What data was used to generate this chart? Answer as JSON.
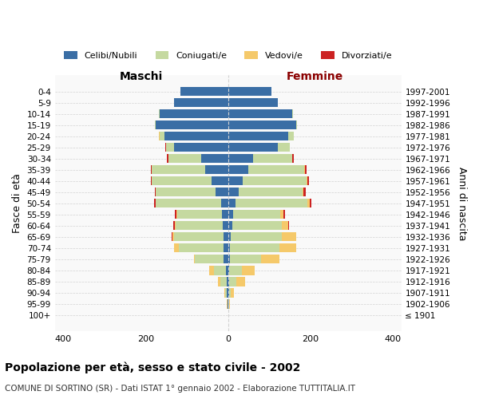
{
  "age_groups": [
    "100+",
    "95-99",
    "90-94",
    "85-89",
    "80-84",
    "75-79",
    "70-74",
    "65-69",
    "60-64",
    "55-59",
    "50-54",
    "45-49",
    "40-44",
    "35-39",
    "30-34",
    "25-29",
    "20-24",
    "15-19",
    "10-14",
    "5-9",
    "0-4"
  ],
  "birth_years": [
    "≤ 1901",
    "1902-1906",
    "1907-1911",
    "1912-1916",
    "1917-1921",
    "1922-1926",
    "1927-1931",
    "1932-1936",
    "1937-1941",
    "1942-1946",
    "1947-1951",
    "1952-1956",
    "1957-1961",
    "1962-1966",
    "1967-1971",
    "1972-1976",
    "1977-1981",
    "1982-1986",
    "1987-1991",
    "1992-1996",
    "1997-2001"
  ],
  "maschi": {
    "celibi": [
      0,
      1,
      3,
      4,
      5,
      10,
      10,
      10,
      12,
      14,
      16,
      30,
      40,
      55,
      65,
      130,
      155,
      175,
      165,
      130,
      115
    ],
    "coniugati": [
      0,
      1,
      4,
      15,
      30,
      70,
      110,
      120,
      115,
      110,
      160,
      145,
      145,
      130,
      80,
      20,
      10,
      2,
      2,
      0,
      0
    ],
    "vedovi": [
      0,
      1,
      2,
      5,
      10,
      2,
      10,
      5,
      2,
      1,
      0,
      0,
      0,
      0,
      0,
      0,
      2,
      0,
      0,
      0,
      0
    ],
    "divorziati": [
      0,
      0,
      0,
      0,
      0,
      0,
      0,
      2,
      3,
      3,
      3,
      3,
      3,
      3,
      3,
      3,
      0,
      0,
      0,
      0,
      0
    ]
  },
  "femmine": {
    "nubili": [
      0,
      1,
      2,
      3,
      2,
      5,
      5,
      6,
      10,
      12,
      18,
      25,
      35,
      50,
      60,
      120,
      145,
      165,
      155,
      120,
      105
    ],
    "coniugate": [
      0,
      1,
      4,
      18,
      32,
      75,
      120,
      125,
      120,
      115,
      175,
      155,
      155,
      135,
      95,
      30,
      15,
      3,
      2,
      0,
      0
    ],
    "vedove": [
      0,
      2,
      8,
      20,
      30,
      45,
      40,
      35,
      15,
      8,
      5,
      3,
      2,
      2,
      1,
      0,
      0,
      0,
      0,
      0,
      0
    ],
    "divorziate": [
      0,
      0,
      0,
      0,
      0,
      0,
      0,
      0,
      3,
      3,
      5,
      5,
      5,
      4,
      3,
      0,
      0,
      0,
      0,
      0,
      0
    ]
  },
  "colors": {
    "celibi": "#3a6ea5",
    "coniugati": "#c5d9a0",
    "vedovi": "#f5c96a",
    "divorziati": "#cc2222"
  },
  "xlim": 420,
  "title": "Popolazione per età, sesso e stato civile - 2002",
  "subtitle": "COMUNE DI SORTINO (SR) - Dati ISTAT 1° gennaio 2002 - Elaborazione TUTTITALIA.IT",
  "ylabel_left": "Fasce di età",
  "ylabel_right": "Anni di nascita",
  "xlabel_maschi": "Maschi",
  "xlabel_femmine": "Femmine",
  "legend_labels": [
    "Celibi/Nubili",
    "Coniugati/e",
    "Vedovi/e",
    "Divorziati/e"
  ]
}
